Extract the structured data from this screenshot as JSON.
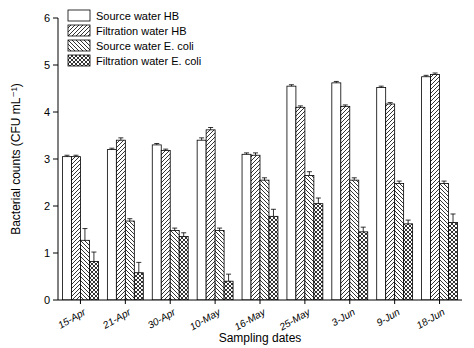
{
  "chart_data": {
    "type": "bar",
    "x_label": "Sampling dates",
    "y_label": "Bacterial counts (CFU mL⁻¹)",
    "categories": [
      "15-Apr",
      "21-Apr",
      "30-Apr",
      "10-May",
      "16-May",
      "25-May",
      "3-Jun",
      "9-Jun",
      "18-Jun"
    ],
    "series": [
      {
        "name": "Source water HB",
        "color": "#000000",
        "values": [
          3.05,
          3.2,
          3.3,
          3.4,
          3.1,
          4.55,
          4.62,
          4.52,
          4.75
        ],
        "errors": [
          0.03,
          0.03,
          0.03,
          0.05,
          0.03,
          0.03,
          0.03,
          0.03,
          0.03
        ]
      },
      {
        "name": "Filtration water HB",
        "color": "#000000",
        "values": [
          3.05,
          3.4,
          3.18,
          3.62,
          3.08,
          4.1,
          4.12,
          4.17,
          4.8
        ],
        "errors": [
          0.03,
          0.05,
          0.03,
          0.05,
          0.05,
          0.03,
          0.03,
          0.03,
          0.03
        ]
      },
      {
        "name": "Source water E. coli",
        "color": "#000000",
        "values": [
          1.27,
          1.68,
          1.48,
          1.48,
          2.55,
          2.65,
          2.55,
          2.48,
          2.48
        ],
        "errors": [
          0.25,
          0.05,
          0.05,
          0.05,
          0.05,
          0.08,
          0.05,
          0.05,
          0.05
        ]
      },
      {
        "name": "Filtration water E. coli",
        "color": "#000000",
        "values": [
          0.82,
          0.58,
          1.35,
          0.4,
          1.78,
          2.05,
          1.45,
          1.62,
          1.65
        ],
        "errors": [
          0.2,
          0.22,
          0.08,
          0.15,
          0.15,
          0.12,
          0.1,
          0.08,
          0.18
        ]
      }
    ],
    "ylim": [
      0,
      6
    ],
    "yticks": [
      0,
      1,
      2,
      3,
      4,
      5,
      6
    ],
    "grid": false,
    "legend": "upper left"
  }
}
